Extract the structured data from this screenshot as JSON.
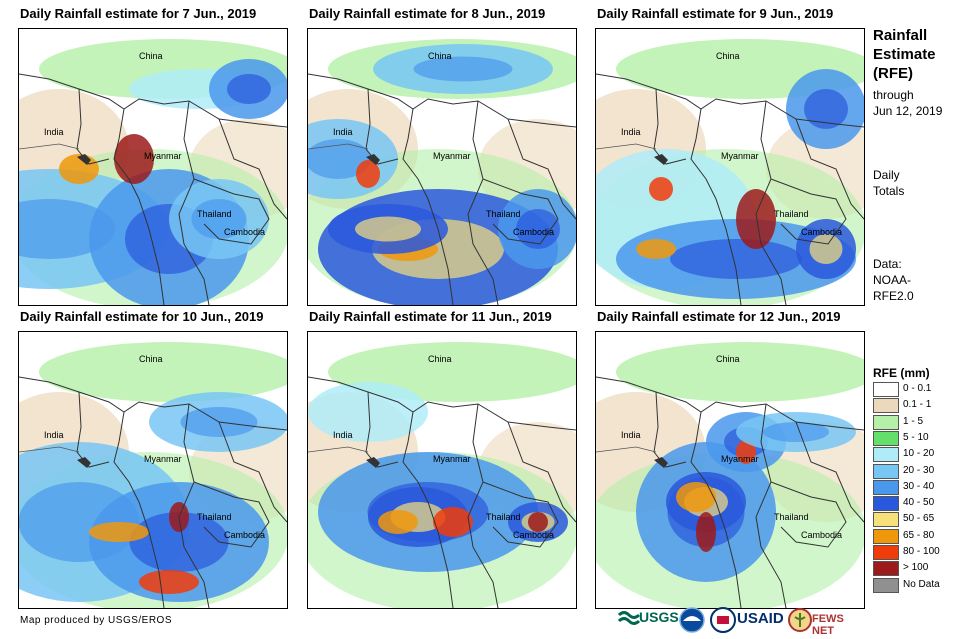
{
  "panels": [
    {
      "title": "Daily Rainfall estimate for 7 Jun., 2019"
    },
    {
      "title": "Daily Rainfall estimate for 8 Jun., 2019"
    },
    {
      "title": "Daily Rainfall estimate for 9 Jun., 2019"
    },
    {
      "title": "Daily Rainfall estimate for 10 Jun., 2019"
    },
    {
      "title": "Daily Rainfall estimate for 11 Jun., 2019"
    },
    {
      "title": "Daily Rainfall estimate for 12 Jun., 2019"
    }
  ],
  "map_labels": {
    "china": "China",
    "india": "India",
    "myanmar": "Myanmar",
    "thailand": "Thailand",
    "cambodia": "Cambodia"
  },
  "sidebar": {
    "title_line1": "Rainfall",
    "title_line2": "Estimate",
    "title_line3": "(RFE)",
    "through": "through",
    "date": "Jun 12, 2019",
    "daily": "Daily",
    "totals": "Totals",
    "data": "Data:",
    "source1": "NOAA-",
    "source2": "RFE2.0"
  },
  "legend": {
    "title": "RFE (mm)",
    "items": [
      {
        "label": "0 - 0.1",
        "color": "#ffffff"
      },
      {
        "label": "0.1 - 1",
        "color": "#ecd9bb"
      },
      {
        "label": "1 - 5",
        "color": "#b4f0a8"
      },
      {
        "label": "5 - 10",
        "color": "#64e06a"
      },
      {
        "label": "10 - 20",
        "color": "#b0ecf8"
      },
      {
        "label": "20 - 30",
        "color": "#78c6f4"
      },
      {
        "label": "30 - 40",
        "color": "#4a98ec"
      },
      {
        "label": "40 - 50",
        "color": "#2a58dc"
      },
      {
        "label": "50 - 65",
        "color": "#f6e07a"
      },
      {
        "label": "65 - 80",
        "color": "#f0980c"
      },
      {
        "label": "80 - 100",
        "color": "#f03c0a"
      },
      {
        "label": "> 100",
        "color": "#9c1a1a"
      },
      {
        "label": "No Data",
        "color": "#909090"
      }
    ]
  },
  "footer": {
    "credit": "Map produced by USGS/EROS"
  },
  "logos": {
    "usgs": "USGS",
    "usaid": "USAID",
    "fewsnet": "FEWS NET"
  }
}
